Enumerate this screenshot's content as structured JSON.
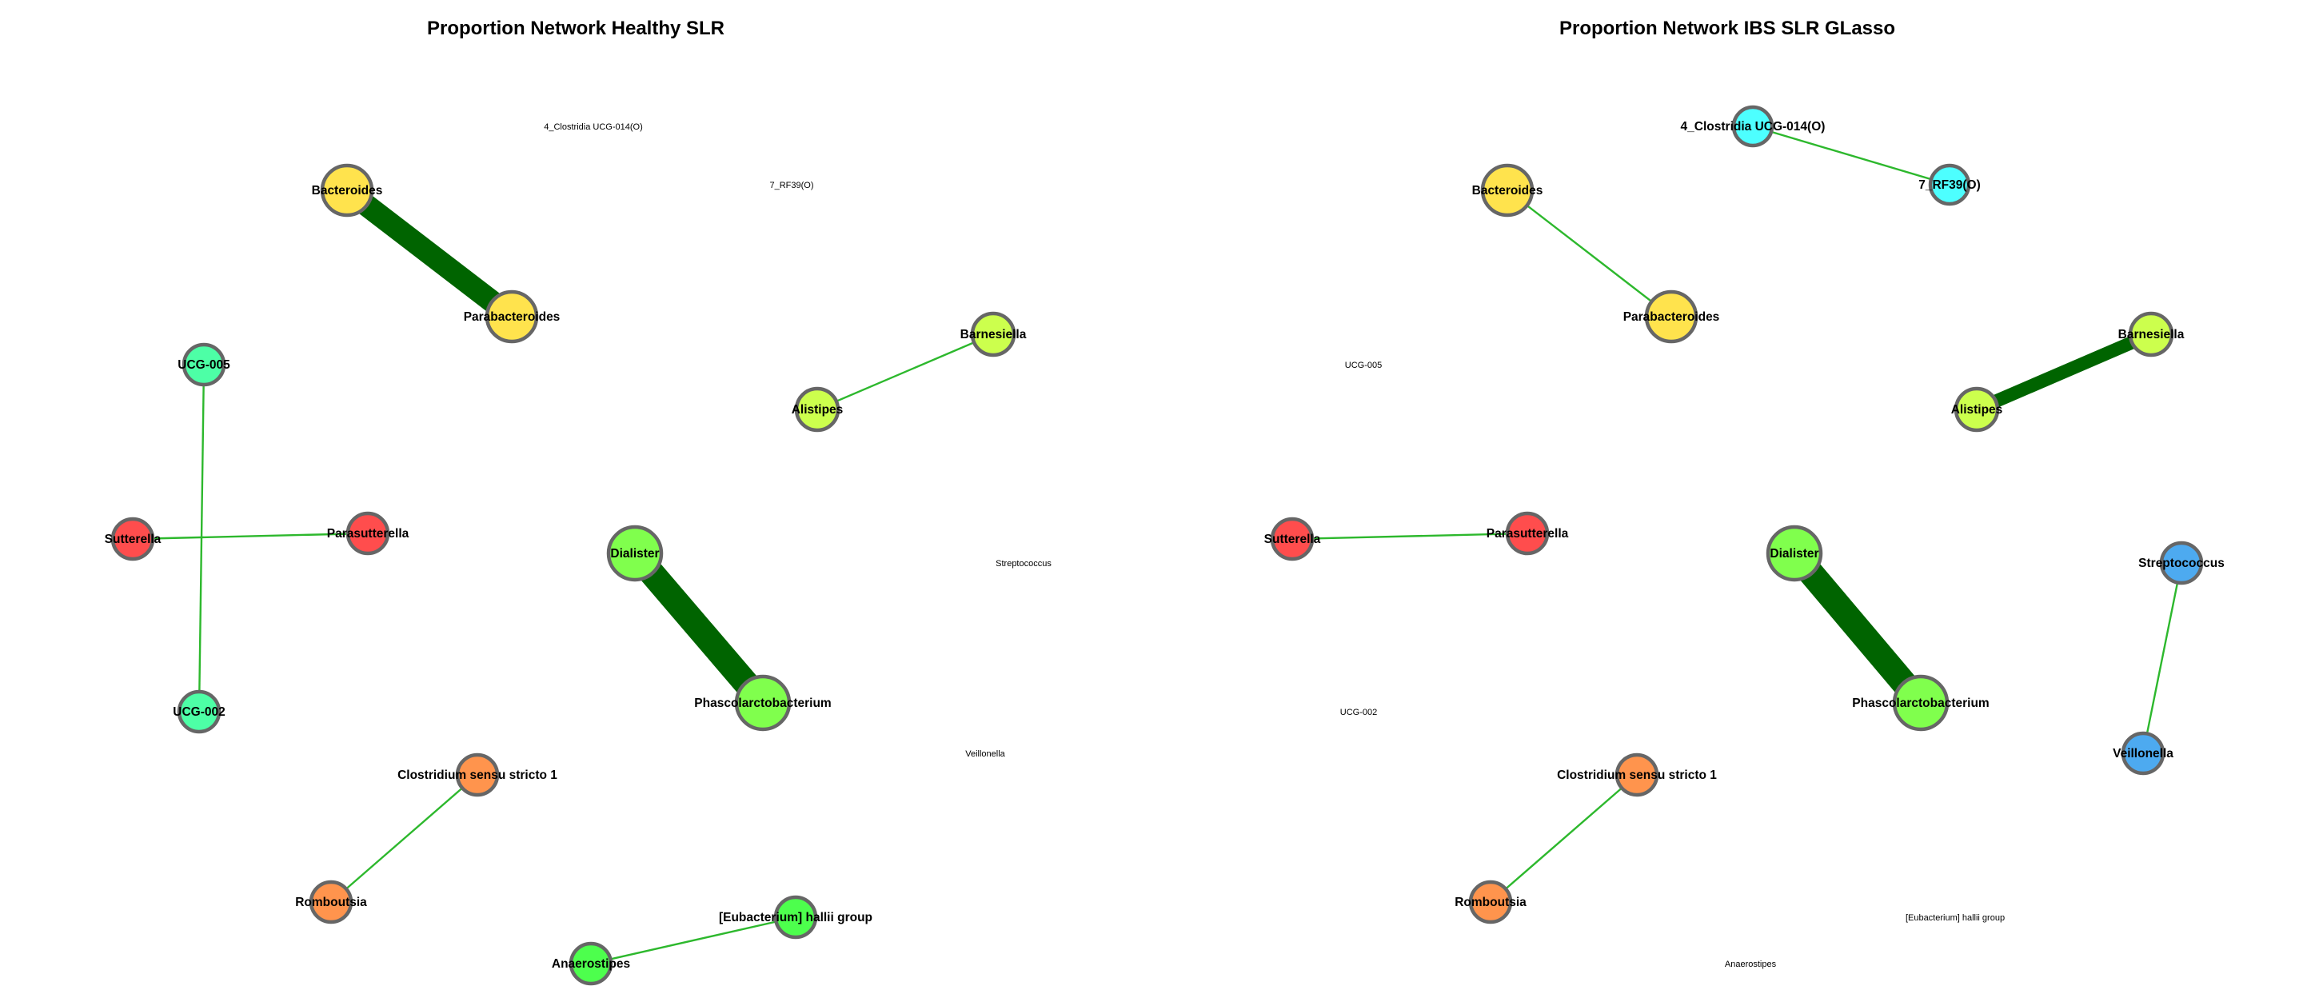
{
  "panels": [
    {
      "title": "Proportion Network Healthy SLR",
      "nodes": [
        {
          "id": "clostridia",
          "label": "4_Clostridia UCG-014(O)",
          "shown": false
        },
        {
          "id": "rf39",
          "label": "7_RF39(O)",
          "shown": false
        },
        {
          "id": "bacteroides",
          "label": "Bacteroides",
          "shown": true,
          "color": "#FFE34D"
        },
        {
          "id": "parabacteroides",
          "label": "Parabacteroides",
          "shown": true,
          "color": "#FFE34D"
        },
        {
          "id": "barnesiella",
          "label": "Barnesiella",
          "shown": true,
          "color": "#CCFF4D"
        },
        {
          "id": "alistipes",
          "label": "Alistipes",
          "shown": true,
          "color": "#CCFF4D"
        },
        {
          "id": "ucg005",
          "label": "UCG-005",
          "shown": true,
          "color": "#4DFFA6"
        },
        {
          "id": "sutterella",
          "label": "Sutterella",
          "shown": true,
          "color": "#FF4D4D"
        },
        {
          "id": "parasutterella",
          "label": "Parasutterella",
          "shown": true,
          "color": "#FF4D4D"
        },
        {
          "id": "dialister",
          "label": "Dialister",
          "shown": true,
          "color": "#80FF4D"
        },
        {
          "id": "streptococcus",
          "label": "Streptococcus",
          "shown": false
        },
        {
          "id": "ucg002",
          "label": "UCG-002",
          "shown": true,
          "color": "#4DFFA6"
        },
        {
          "id": "phascolarctobacterium",
          "label": "Phascolarctobacterium",
          "shown": true,
          "color": "#80FF4D"
        },
        {
          "id": "veillonella",
          "label": "Veillonella",
          "shown": false
        },
        {
          "id": "clostridium",
          "label": "Clostridium sensu stricto 1",
          "shown": true,
          "color": "#FF944D"
        },
        {
          "id": "romboutsia",
          "label": "Romboutsia",
          "shown": true,
          "color": "#FF944D"
        },
        {
          "id": "eubacterium",
          "label": "[Eubacterium] hallii group",
          "shown": true,
          "color": "#4DFF4D"
        },
        {
          "id": "anaerostipes",
          "label": "Anaerostipes",
          "shown": true,
          "color": "#4DFF4D"
        }
      ],
      "edges": [
        {
          "from": "bacteroides",
          "to": "parabacteroides",
          "weight": 0.85
        },
        {
          "from": "alistipes",
          "to": "barnesiella",
          "weight": 0.1
        },
        {
          "from": "ucg005",
          "to": "ucg002",
          "weight": 0.1
        },
        {
          "from": "sutterella",
          "to": "parasutterella",
          "weight": 0.1
        },
        {
          "from": "dialister",
          "to": "phascolarctobacterium",
          "weight": 1.0
        },
        {
          "from": "clostridium",
          "to": "romboutsia",
          "weight": 0.1
        },
        {
          "from": "eubacterium",
          "to": "anaerostipes",
          "weight": 0.1
        }
      ]
    },
    {
      "title": "Proportion Network IBS SLR GLasso",
      "nodes": [
        {
          "id": "clostridia",
          "label": "4_Clostridia UCG-014(O)",
          "shown": true,
          "color": "#4DFFFF"
        },
        {
          "id": "rf39",
          "label": "7_RF39(O)",
          "shown": true,
          "color": "#4DFFFF"
        },
        {
          "id": "bacteroides",
          "label": "Bacteroides",
          "shown": true,
          "color": "#FFE34D"
        },
        {
          "id": "parabacteroides",
          "label": "Parabacteroides",
          "shown": true,
          "color": "#FFE34D"
        },
        {
          "id": "barnesiella",
          "label": "Barnesiella",
          "shown": true,
          "color": "#CCFF4D"
        },
        {
          "id": "alistipes",
          "label": "Alistipes",
          "shown": true,
          "color": "#CCFF4D"
        },
        {
          "id": "ucg005",
          "label": "UCG-005",
          "shown": false
        },
        {
          "id": "sutterella",
          "label": "Sutterella",
          "shown": true,
          "color": "#FF4D4D"
        },
        {
          "id": "parasutterella",
          "label": "Parasutterella",
          "shown": true,
          "color": "#FF4D4D"
        },
        {
          "id": "dialister",
          "label": "Dialister",
          "shown": true,
          "color": "#80FF4D"
        },
        {
          "id": "streptococcus",
          "label": "Streptococcus",
          "shown": true,
          "color": "#4DAAF0"
        },
        {
          "id": "ucg002",
          "label": "UCG-002",
          "shown": false
        },
        {
          "id": "phascolarctobacterium",
          "label": "Phascolarctobacterium",
          "shown": true,
          "color": "#80FF4D"
        },
        {
          "id": "veillonella",
          "label": "Veillonella",
          "shown": true,
          "color": "#4DAAF0"
        },
        {
          "id": "clostridium",
          "label": "Clostridium sensu stricto 1",
          "shown": true,
          "color": "#FF944D"
        },
        {
          "id": "romboutsia",
          "label": "Romboutsia",
          "shown": true,
          "color": "#FF944D"
        },
        {
          "id": "eubacterium",
          "label": "[Eubacterium] hallii group",
          "shown": false
        },
        {
          "id": "anaerostipes",
          "label": "Anaerostipes",
          "shown": false
        }
      ],
      "edges": [
        {
          "from": "clostridia",
          "to": "rf39",
          "weight": 0.1
        },
        {
          "from": "bacteroides",
          "to": "parabacteroides",
          "weight": 0.1
        },
        {
          "from": "alistipes",
          "to": "barnesiella",
          "weight": 0.45
        },
        {
          "from": "sutterella",
          "to": "parasutterella",
          "weight": 0.1
        },
        {
          "from": "dialister",
          "to": "phascolarctobacterium",
          "weight": 1.0
        },
        {
          "from": "streptococcus",
          "to": "veillonella",
          "weight": 0.1
        },
        {
          "from": "clostridium",
          "to": "romboutsia",
          "weight": 0.1
        }
      ]
    }
  ]
}
